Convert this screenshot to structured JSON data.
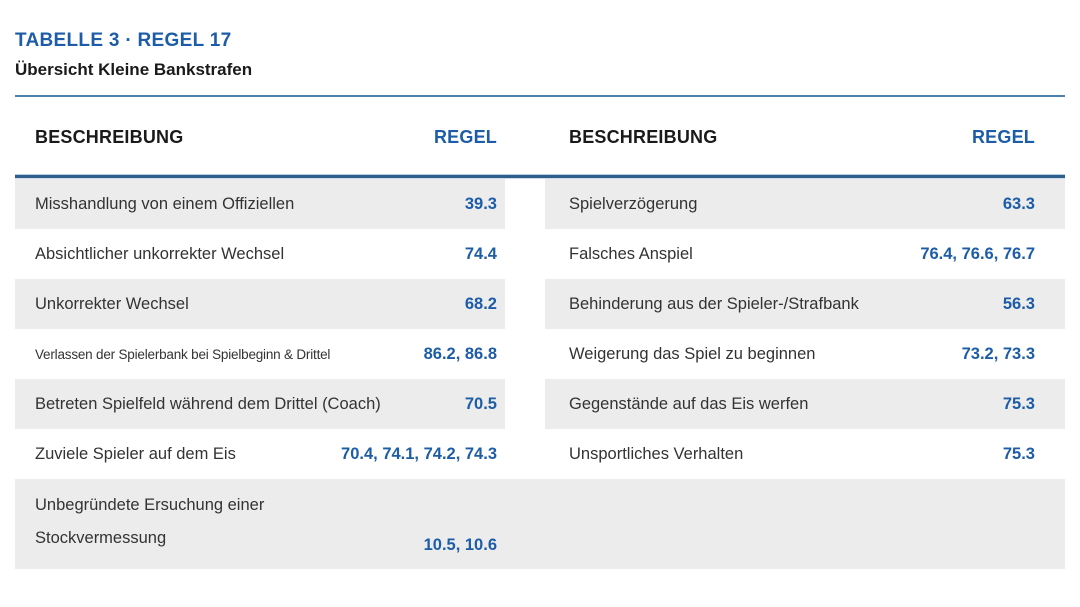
{
  "header": {
    "title": "TABELLE 3 · REGEL 17",
    "subtitle": "Übersicht Kleine Bankstrafen"
  },
  "columns": {
    "description_label": "BESCHREIBUNG",
    "rule_label": "REGEL"
  },
  "colors": {
    "accent_blue": "#1d5ca6",
    "header_rule_dark": "#2d5e8c",
    "divider_thin": "#4d80ad",
    "row_stripe_gray": "#ececec",
    "body_text": "#333333"
  },
  "tables": {
    "left": {
      "rows": [
        {
          "description": "Misshandlung von einem Offiziellen",
          "rule": "39.3"
        },
        {
          "description": "Absichtlicher unkorrekter Wechsel",
          "rule": "74.4"
        },
        {
          "description": "Unkorrekter Wechsel",
          "rule": "68.2"
        },
        {
          "description": "Verlassen der Spielerbank bei Spielbeginn & Drittel",
          "rule": "86.2, 86.8"
        },
        {
          "description": "Betreten Spielfeld während dem Drittel (Coach)",
          "rule": "70.5"
        },
        {
          "description": "Zuviele Spieler auf dem Eis",
          "rule": "70.4, 74.1, 74.2, 74.3"
        },
        {
          "description": "Unbegründete Ersuchung einer Stockvermessung",
          "rule": "10.5, 10.6"
        }
      ]
    },
    "right": {
      "rows": [
        {
          "description": "Spielverzögerung",
          "rule": "63.3"
        },
        {
          "description": "Falsches Anspiel",
          "rule": "76.4, 76.6, 76.7"
        },
        {
          "description": "Behinderung aus der Spieler-/Strafbank",
          "rule": "56.3"
        },
        {
          "description": "Weigerung das Spiel zu beginnen",
          "rule": "73.2, 73.3"
        },
        {
          "description": "Gegenstände auf das Eis werfen",
          "rule": "75.3"
        },
        {
          "description": "Unsportliches Verhalten",
          "rule": "75.3"
        }
      ]
    }
  }
}
